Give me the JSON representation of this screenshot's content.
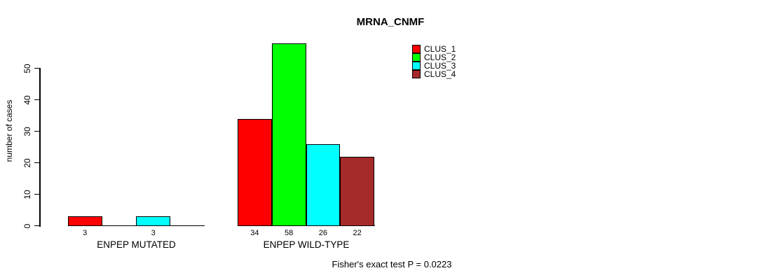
{
  "chart_data": {
    "type": "bar",
    "title": "MRNA_CNMF",
    "ylabel": "number of cases",
    "yticks": [
      0,
      10,
      20,
      30,
      40,
      50
    ],
    "ylim": [
      0,
      58
    ],
    "grid": false,
    "legend_position": "top-right",
    "categories": [
      "ENPEP MUTATED",
      "ENPEP WILD-TYPE"
    ],
    "series": [
      {
        "name": "CLUS_1",
        "color": "#ff0000",
        "values": [
          3,
          34
        ]
      },
      {
        "name": "CLUS_2",
        "color": "#00ff00",
        "values": [
          0,
          58
        ]
      },
      {
        "name": "CLUS_3",
        "color": "#00ffff",
        "values": [
          3,
          26
        ]
      },
      {
        "name": "CLUS_4",
        "color": "#a52a2a",
        "values": [
          0,
          22
        ]
      }
    ],
    "footer": "Fisher's exact test P = 0.0223"
  }
}
